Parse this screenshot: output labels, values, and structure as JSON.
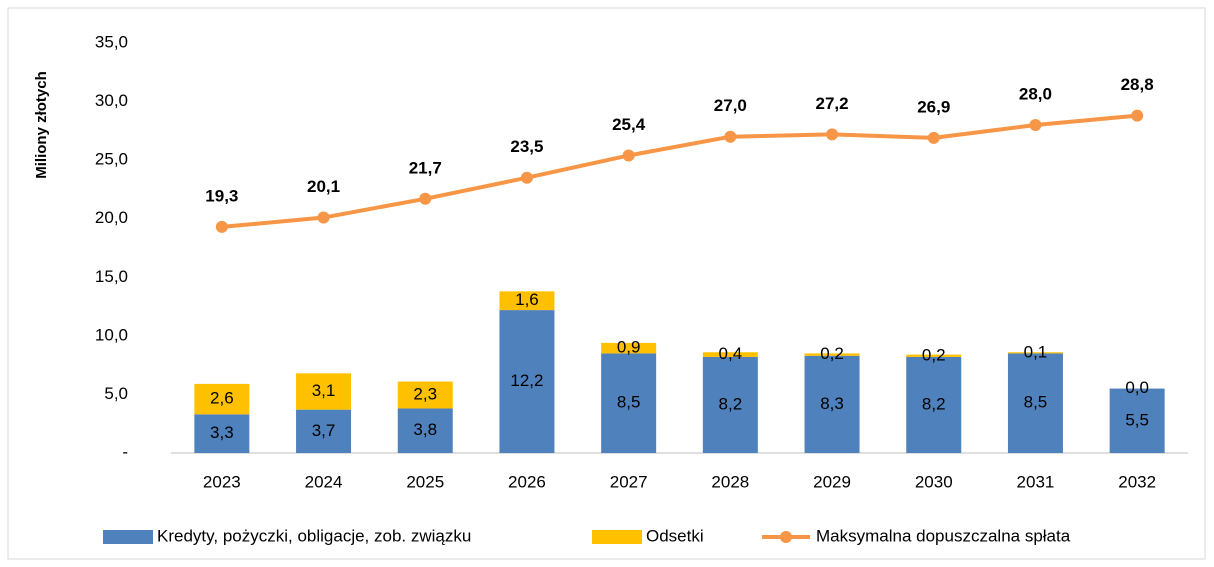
{
  "chart_data": {
    "type": "bar",
    "ylabel": "Miliony złotych",
    "categories": [
      "2023",
      "2024",
      "2025",
      "2026",
      "2027",
      "2028",
      "2029",
      "2030",
      "2031",
      "2032"
    ],
    "series": [
      {
        "name": "Kredyty, pożyczki, obligacje, zob. związku",
        "type": "bar",
        "color": "#4f81bd",
        "values": [
          3.3,
          3.7,
          3.8,
          12.2,
          8.5,
          8.2,
          8.3,
          8.2,
          8.5,
          5.5
        ],
        "value_labels": [
          "3,3",
          "3,7",
          "3,8",
          "12,2",
          "8,5",
          "8,2",
          "8,3",
          "8,2",
          "8,5",
          "5,5"
        ]
      },
      {
        "name": "Odsetki",
        "type": "bar",
        "color": "#ffc000",
        "values": [
          2.6,
          3.1,
          2.3,
          1.6,
          0.9,
          0.4,
          0.2,
          0.2,
          0.1,
          0.0
        ],
        "value_labels": [
          "2,6",
          "3,1",
          "2,3",
          "1,6",
          "0,9",
          "0,4",
          "0,2",
          "0,2",
          "0,1",
          "0,0"
        ]
      },
      {
        "name": "Maksymalna dopuszczalna spłata",
        "type": "line",
        "color": "#f79646",
        "values": [
          19.3,
          20.1,
          21.7,
          23.5,
          25.4,
          27.0,
          27.2,
          26.9,
          28.0,
          28.8
        ],
        "value_labels": [
          "19,3",
          "20,1",
          "21,7",
          "23,5",
          "25,4",
          "27,0",
          "27,2",
          "26,9",
          "28,0",
          "28,8"
        ]
      }
    ],
    "ylim": [
      0,
      35
    ],
    "yticks": [
      {
        "value": 0,
        "label": "-"
      },
      {
        "value": 5,
        "label": "5,0"
      },
      {
        "value": 10,
        "label": "10,0"
      },
      {
        "value": 15,
        "label": "15,0"
      },
      {
        "value": 20,
        "label": "20,0"
      },
      {
        "value": 25,
        "label": "25,0"
      },
      {
        "value": 30,
        "label": "30,0"
      },
      {
        "value": 35,
        "label": "35,0"
      }
    ],
    "grid": false,
    "legend": "bottom"
  }
}
